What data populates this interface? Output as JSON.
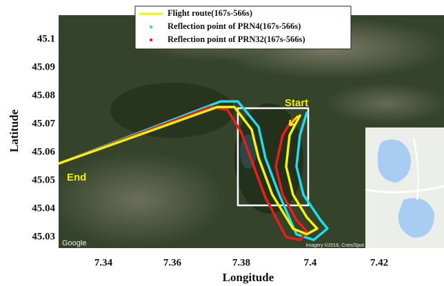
{
  "chart_data": {
    "type": "line",
    "x_label": "Longitude",
    "y_label": "Latitude",
    "xlim": [
      7.327,
      7.4388
    ],
    "ylim": [
      45.0261,
      45.1085
    ],
    "xticks": [
      7.34,
      7.36,
      7.38,
      7.4,
      7.42
    ],
    "yticks": [
      45.03,
      45.04,
      45.05,
      45.06,
      45.07,
      45.08,
      45.09,
      45.1
    ],
    "grid": false,
    "annotations": [
      "Start",
      "End"
    ],
    "map_attribution": [
      "Google",
      "Imagery ©2016, Cnes/Spot"
    ],
    "series": [
      {
        "name": "Flight route(167s-566s)",
        "color": "#f5f500",
        "legend_marker": "line",
        "x": [
          7.397,
          7.394,
          7.393,
          7.395,
          7.399,
          7.402,
          7.399,
          7.395,
          7.389,
          7.385,
          7.383,
          7.378,
          7.373,
          7.327
        ],
        "values": [
          45.073,
          45.066,
          45.055,
          45.045,
          45.037,
          45.033,
          45.031,
          45.033,
          45.045,
          45.058,
          45.068,
          45.076,
          45.076,
          45.056
        ]
      },
      {
        "name": "Reflection point of PRN4(167s-566s)",
        "color": "#22dde8",
        "legend_marker": "dot",
        "x": [
          7.399,
          7.397,
          7.396,
          7.398,
          7.403,
          7.405,
          7.401,
          7.396,
          7.391,
          7.387,
          7.385,
          7.379,
          7.374,
          7.327
        ],
        "values": [
          45.074,
          45.066,
          45.055,
          45.045,
          45.036,
          45.033,
          45.029,
          45.031,
          45.045,
          45.058,
          45.069,
          45.078,
          45.078,
          45.056
        ]
      },
      {
        "name": "Reflection point of PRN32(167s-566s)",
        "color": "#ee1c1c",
        "legend_marker": "dot",
        "x": [
          7.395,
          7.392,
          7.39,
          7.392,
          7.396,
          7.399,
          7.397,
          7.393,
          7.387,
          7.383,
          7.38,
          7.376,
          7.371,
          7.327
        ],
        "values": [
          45.072,
          45.066,
          45.055,
          45.045,
          45.036,
          45.032,
          45.029,
          45.03,
          45.044,
          45.057,
          45.067,
          45.075,
          45.076,
          45.056
        ]
      }
    ]
  }
}
